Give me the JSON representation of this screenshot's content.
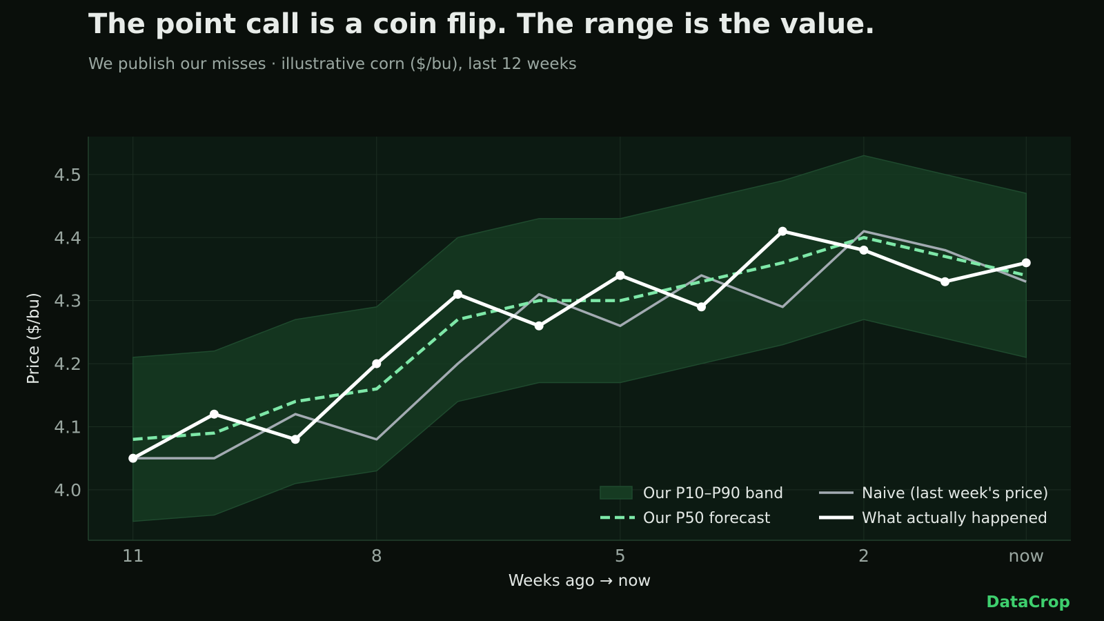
{
  "title": "The point call is a coin flip. The range is the value.",
  "subtitle": "We publish our misses  ·  illustrative corn ($/bu), last 12 weeks",
  "brand": "DataCrop",
  "colors": {
    "background": "#0a0f0b",
    "plot_background": "#0c1a12",
    "band_fill": "#163b22",
    "band_edge": "#1f4a2e",
    "p50": "#7ee8a8",
    "naive": "#a3abb2",
    "actual": "#ffffff",
    "brand": "#3ecf6e"
  },
  "chart_data": {
    "type": "line",
    "xlabel": "Weeks ago → now",
    "ylabel": "Price ($/bu)",
    "x": [
      11,
      10,
      9,
      8,
      7,
      6,
      5,
      4,
      3,
      2,
      1,
      0
    ],
    "x_ticks": [
      {
        "x": 11,
        "label": "11"
      },
      {
        "x": 8,
        "label": "8"
      },
      {
        "x": 5,
        "label": "5"
      },
      {
        "x": 2,
        "label": "2"
      },
      {
        "x": 0,
        "label": "now"
      }
    ],
    "y_ticks": [
      {
        "y": 4.0,
        "label": "4.0"
      },
      {
        "y": 4.1,
        "label": "4.1"
      },
      {
        "y": 4.2,
        "label": "4.2"
      },
      {
        "y": 4.3,
        "label": "4.3"
      },
      {
        "y": 4.4,
        "label": "4.4"
      },
      {
        "y": 4.5,
        "label": "4.5"
      }
    ],
    "xlim": [
      11.55,
      -0.55
    ],
    "ylim": [
      3.92,
      4.56
    ],
    "grid": true,
    "legend_position": "bottom-right",
    "band": {
      "name": "Our P10–P90 band",
      "lower": [
        3.95,
        3.96,
        4.01,
        4.03,
        4.14,
        4.17,
        4.17,
        4.2,
        4.23,
        4.27,
        4.24,
        4.21
      ],
      "upper": [
        4.21,
        4.22,
        4.27,
        4.29,
        4.4,
        4.43,
        4.43,
        4.46,
        4.49,
        4.53,
        4.5,
        4.47
      ]
    },
    "series": [
      {
        "name": "Our P50 forecast",
        "style": "dashed",
        "values": [
          4.08,
          4.09,
          4.14,
          4.16,
          4.27,
          4.3,
          4.3,
          4.33,
          4.36,
          4.4,
          4.37,
          4.34
        ]
      },
      {
        "name": "Naive (last week's price)",
        "style": "solid",
        "values": [
          4.05,
          4.05,
          4.12,
          4.08,
          4.2,
          4.31,
          4.26,
          4.34,
          4.29,
          4.41,
          4.38,
          4.33
        ]
      },
      {
        "name": "What actually happened",
        "style": "solid-markers",
        "values": [
          4.05,
          4.12,
          4.08,
          4.2,
          4.31,
          4.26,
          4.34,
          4.29,
          4.41,
          4.38,
          4.33,
          4.36
        ]
      }
    ]
  }
}
